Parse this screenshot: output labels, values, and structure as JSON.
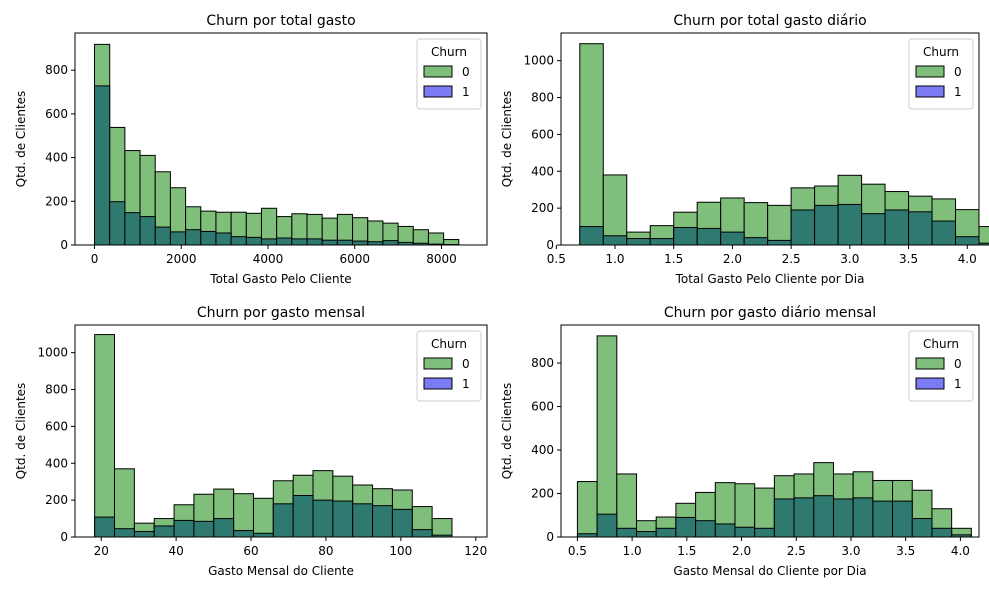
{
  "colors": {
    "churn0": "#7fbf7b",
    "churn1": "#2f7a70",
    "legend1": "#7b7bf5",
    "edge": "#000000"
  },
  "chart_data": [
    {
      "type": "histogram",
      "title": "Churn por total gasto",
      "xlabel": "Total Gasto Pelo Cliente",
      "ylabel": "Qtd. de Clientes",
      "xlim": [
        -450,
        9050
      ],
      "ylim": [
        0,
        970
      ],
      "xticks": [
        {
          "v": 0,
          "label": "0"
        },
        {
          "v": 2000,
          "label": "2000"
        },
        {
          "v": 4000,
          "label": "4000"
        },
        {
          "v": 6000,
          "label": "6000"
        },
        {
          "v": 8000,
          "label": "8000"
        }
      ],
      "yticks": [
        {
          "v": 0,
          "label": "0"
        },
        {
          "v": 200,
          "label": "200"
        },
        {
          "v": 400,
          "label": "400"
        },
        {
          "v": 600,
          "label": "600"
        },
        {
          "v": 800,
          "label": "800"
        }
      ],
      "bin_start": 0,
      "bin_width": 350,
      "legend": {
        "title": "Churn",
        "entries": [
          "0",
          "1"
        ],
        "position": "top-right"
      },
      "series": [
        {
          "name": "0",
          "values": [
            918,
            538,
            432,
            410,
            335,
            262,
            175,
            155,
            150,
            150,
            145,
            168,
            130,
            143,
            140,
            123,
            140,
            125,
            110,
            100,
            85,
            70,
            55,
            25
          ]
        },
        {
          "name": "1",
          "values": [
            728,
            198,
            148,
            130,
            82,
            60,
            70,
            62,
            55,
            38,
            35,
            28,
            32,
            28,
            28,
            22,
            22,
            18,
            15,
            20,
            12,
            8,
            4,
            2
          ]
        }
      ]
    },
    {
      "type": "histogram",
      "title": "Churn por total gasto diário",
      "xlabel": "Total Gasto Pelo Cliente por Dia",
      "ylabel": "Qtd. de Clientes",
      "xlim": [
        0.54,
        4.1
      ],
      "ylim": [
        0,
        1150
      ],
      "xticks": [
        {
          "v": 0.5,
          "label": "0.5"
        },
        {
          "v": 1.0,
          "label": "1.0"
        },
        {
          "v": 1.5,
          "label": "1.5"
        },
        {
          "v": 2.0,
          "label": "2.0"
        },
        {
          "v": 2.5,
          "label": "2.5"
        },
        {
          "v": 3.0,
          "label": "3.0"
        },
        {
          "v": 3.5,
          "label": "3.5"
        },
        {
          "v": 4.0,
          "label": "4.0"
        }
      ],
      "yticks": [
        {
          "v": 0,
          "label": "0"
        },
        {
          "v": 200,
          "label": "200"
        },
        {
          "v": 400,
          "label": "400"
        },
        {
          "v": 600,
          "label": "600"
        },
        {
          "v": 800,
          "label": "800"
        },
        {
          "v": 1000,
          "label": "1000"
        }
      ],
      "bin_start": 0.7,
      "bin_width": 0.2,
      "legend": {
        "title": "Churn",
        "entries": [
          "0",
          "1"
        ],
        "position": "top-right"
      },
      "series": [
        {
          "name": "0",
          "values": [
            1092,
            380,
            70,
            105,
            178,
            232,
            255,
            230,
            215,
            310,
            320,
            378,
            330,
            290,
            265,
            250,
            192,
            100
          ]
        },
        {
          "name": "1",
          "values": [
            100,
            50,
            35,
            35,
            95,
            90,
            70,
            40,
            25,
            190,
            215,
            220,
            170,
            190,
            180,
            130,
            45,
            10
          ]
        }
      ]
    },
    {
      "type": "histogram",
      "title": "Churn por gasto mensal",
      "xlabel": "Gasto Mensal do Cliente",
      "ylabel": "Qtd. de Clientes",
      "xlim": [
        13,
        123
      ],
      "ylim": [
        0,
        1150
      ],
      "xticks": [
        {
          "v": 20,
          "label": "20"
        },
        {
          "v": 40,
          "label": "40"
        },
        {
          "v": 60,
          "label": "60"
        },
        {
          "v": 80,
          "label": "80"
        },
        {
          "v": 100,
          "label": "100"
        },
        {
          "v": 120,
          "label": "120"
        }
      ],
      "yticks": [
        {
          "v": 0,
          "label": "0"
        },
        {
          "v": 200,
          "label": "200"
        },
        {
          "v": 400,
          "label": "400"
        },
        {
          "v": 600,
          "label": "600"
        },
        {
          "v": 800,
          "label": "800"
        },
        {
          "v": 1000,
          "label": "1000"
        }
      ],
      "bin_start": 18.25,
      "bin_width": 5.3,
      "legend": {
        "title": "Churn",
        "entries": [
          "0",
          "1"
        ],
        "position": "top-right"
      },
      "series": [
        {
          "name": "0",
          "values": [
            1098,
            370,
            75,
            100,
            175,
            232,
            260,
            235,
            210,
            305,
            335,
            360,
            330,
            282,
            262,
            255,
            165,
            100
          ]
        },
        {
          "name": "1",
          "values": [
            108,
            45,
            30,
            60,
            90,
            85,
            100,
            35,
            20,
            180,
            225,
            200,
            195,
            180,
            170,
            150,
            40,
            10
          ]
        }
      ]
    },
    {
      "type": "histogram",
      "title": "Churn por gasto diário mensal",
      "xlabel": "Gasto Mensal do Cliente por Dia",
      "ylabel": "Qtd. de Clientes",
      "xlim": [
        0.35,
        4.17
      ],
      "ylim": [
        0,
        975
      ],
      "xticks": [
        {
          "v": 0.5,
          "label": "0.5"
        },
        {
          "v": 1.0,
          "label": "1.0"
        },
        {
          "v": 1.5,
          "label": "1.5"
        },
        {
          "v": 2.0,
          "label": "2.0"
        },
        {
          "v": 2.5,
          "label": "2.5"
        },
        {
          "v": 3.0,
          "label": "3.0"
        },
        {
          "v": 3.5,
          "label": "3.5"
        },
        {
          "v": 4.0,
          "label": "4.0"
        }
      ],
      "yticks": [
        {
          "v": 0,
          "label": "0"
        },
        {
          "v": 200,
          "label": "200"
        },
        {
          "v": 400,
          "label": "400"
        },
        {
          "v": 600,
          "label": "600"
        },
        {
          "v": 800,
          "label": "800"
        }
      ],
      "bin_start": 0.5,
      "bin_width": 0.18,
      "legend": {
        "title": "Churn",
        "entries": [
          "0",
          "1"
        ],
        "position": "top-right"
      },
      "series": [
        {
          "name": "0",
          "values": [
            255,
            925,
            290,
            75,
            92,
            155,
            205,
            250,
            245,
            225,
            282,
            290,
            342,
            290,
            300,
            260,
            260,
            215,
            130,
            40
          ]
        },
        {
          "name": "1",
          "values": [
            15,
            105,
            40,
            25,
            40,
            90,
            75,
            60,
            45,
            40,
            175,
            180,
            190,
            175,
            180,
            165,
            165,
            85,
            40,
            10
          ]
        }
      ]
    }
  ]
}
